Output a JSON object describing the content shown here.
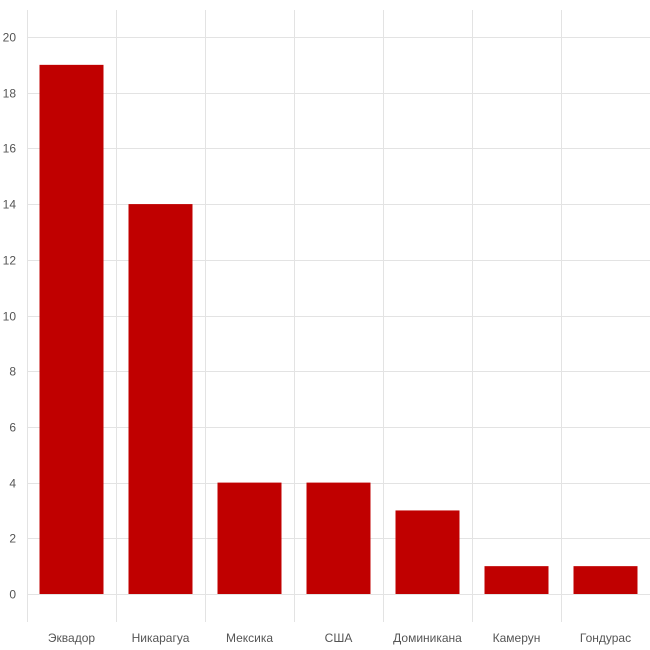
{
  "chart_data": {
    "type": "bar",
    "categories": [
      "Эквадор",
      "Никарагуа",
      "Мексика",
      "США",
      "Доминикана",
      "Камерун",
      "Гондурас"
    ],
    "values": [
      19,
      14,
      4,
      4,
      3,
      1,
      1
    ],
    "title": "",
    "xlabel": "",
    "ylabel": "",
    "ylim": [
      0,
      20
    ],
    "yticks": [
      "0",
      "2",
      "4",
      "6",
      "8",
      "10",
      "12",
      "14",
      "16",
      "18",
      "20"
    ],
    "grid": true,
    "legend": "none",
    "bar_color": "#c00000",
    "grid_color": "#e3e3e3"
  }
}
